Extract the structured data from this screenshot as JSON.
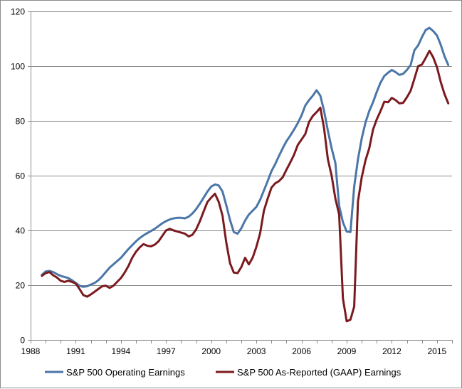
{
  "chart_data": {
    "type": "line",
    "xlim": [
      1988,
      2016
    ],
    "ylim": [
      0,
      120
    ],
    "yticks": [
      0,
      20,
      40,
      60,
      80,
      100,
      120
    ],
    "xticks": [
      1988,
      1991,
      1994,
      1997,
      2000,
      2003,
      2006,
      2009,
      2012,
      2015
    ],
    "xtick_labels": [
      "1988",
      "1991",
      "1994",
      "1997",
      "2000",
      "2003",
      "2006",
      "2009",
      "2012",
      "2015"
    ],
    "ytick_labels": [
      "0",
      "20",
      "40",
      "60",
      "80",
      "100",
      "120"
    ],
    "grid": "horizontal",
    "legend_position": "bottom",
    "series": [
      {
        "name": "S&P 500 Operating Earnings",
        "color": "#4a76a8",
        "points": [
          [
            1988.75,
            23.8
          ],
          [
            1989.0,
            25.0
          ],
          [
            1989.25,
            25.2
          ],
          [
            1989.5,
            24.8
          ],
          [
            1989.75,
            24.0
          ],
          [
            1990.0,
            23.4
          ],
          [
            1990.25,
            23.0
          ],
          [
            1990.5,
            22.6
          ],
          [
            1990.75,
            21.8
          ],
          [
            1991.0,
            20.8
          ],
          [
            1991.25,
            19.8
          ],
          [
            1991.5,
            19.4
          ],
          [
            1991.75,
            19.6
          ],
          [
            1992.0,
            20.2
          ],
          [
            1992.25,
            20.8
          ],
          [
            1992.5,
            21.8
          ],
          [
            1992.75,
            23.2
          ],
          [
            1993.0,
            24.8
          ],
          [
            1993.25,
            26.4
          ],
          [
            1993.5,
            27.6
          ],
          [
            1993.75,
            28.8
          ],
          [
            1994.0,
            30.0
          ],
          [
            1994.25,
            31.6
          ],
          [
            1994.5,
            33.2
          ],
          [
            1994.75,
            34.6
          ],
          [
            1995.0,
            36.0
          ],
          [
            1995.25,
            37.2
          ],
          [
            1995.5,
            38.2
          ],
          [
            1995.75,
            39.0
          ],
          [
            1996.0,
            39.8
          ],
          [
            1996.25,
            40.6
          ],
          [
            1996.5,
            41.6
          ],
          [
            1996.75,
            42.6
          ],
          [
            1997.0,
            43.4
          ],
          [
            1997.25,
            44.0
          ],
          [
            1997.5,
            44.4
          ],
          [
            1997.75,
            44.6
          ],
          [
            1998.0,
            44.6
          ],
          [
            1998.25,
            44.4
          ],
          [
            1998.5,
            45.0
          ],
          [
            1998.75,
            46.2
          ],
          [
            1999.0,
            47.8
          ],
          [
            1999.25,
            49.8
          ],
          [
            1999.5,
            52.0
          ],
          [
            1999.75,
            54.2
          ],
          [
            2000.0,
            56.0
          ],
          [
            2000.25,
            56.8
          ],
          [
            2000.5,
            56.4
          ],
          [
            2000.75,
            54.2
          ],
          [
            2001.0,
            49.2
          ],
          [
            2001.25,
            43.8
          ],
          [
            2001.5,
            39.4
          ],
          [
            2001.75,
            38.8
          ],
          [
            2002.0,
            40.8
          ],
          [
            2002.25,
            43.6
          ],
          [
            2002.5,
            45.8
          ],
          [
            2002.75,
            47.2
          ],
          [
            2003.0,
            48.6
          ],
          [
            2003.25,
            51.2
          ],
          [
            2003.5,
            54.6
          ],
          [
            2003.75,
            58.0
          ],
          [
            2004.0,
            61.6
          ],
          [
            2004.25,
            64.2
          ],
          [
            2004.5,
            67.2
          ],
          [
            2004.75,
            70.0
          ],
          [
            2005.0,
            72.6
          ],
          [
            2005.25,
            74.6
          ],
          [
            2005.5,
            76.8
          ],
          [
            2005.75,
            79.2
          ],
          [
            2006.0,
            82.0
          ],
          [
            2006.25,
            85.6
          ],
          [
            2006.5,
            87.6
          ],
          [
            2006.75,
            89.2
          ],
          [
            2007.0,
            91.2
          ],
          [
            2007.25,
            89.2
          ],
          [
            2007.5,
            83.6
          ],
          [
            2007.75,
            76.4
          ],
          [
            2008.0,
            70.0
          ],
          [
            2008.25,
            64.6
          ],
          [
            2008.5,
            49.0
          ],
          [
            2008.75,
            43.0
          ],
          [
            2009.0,
            39.6
          ],
          [
            2009.25,
            39.4
          ],
          [
            2009.5,
            56.0
          ],
          [
            2009.75,
            66.0
          ],
          [
            2010.0,
            73.6
          ],
          [
            2010.25,
            79.4
          ],
          [
            2010.5,
            83.6
          ],
          [
            2010.75,
            86.8
          ],
          [
            2011.0,
            90.6
          ],
          [
            2011.25,
            94.0
          ],
          [
            2011.5,
            96.4
          ],
          [
            2011.75,
            97.6
          ],
          [
            2012.0,
            98.6
          ],
          [
            2012.25,
            97.8
          ],
          [
            2012.5,
            96.8
          ],
          [
            2012.75,
            97.2
          ],
          [
            2013.0,
            98.6
          ],
          [
            2013.25,
            100.4
          ],
          [
            2013.5,
            105.8
          ],
          [
            2013.75,
            107.6
          ],
          [
            2014.0,
            110.6
          ],
          [
            2014.25,
            113.2
          ],
          [
            2014.5,
            114.0
          ],
          [
            2014.75,
            112.8
          ],
          [
            2015.0,
            111.2
          ],
          [
            2015.25,
            107.8
          ],
          [
            2015.5,
            103.6
          ],
          [
            2015.75,
            100.4
          ]
        ]
      },
      {
        "name": "S&P 500 As-Reported (GAAP) Earnings",
        "color": "#7b1a1e",
        "points": [
          [
            1988.75,
            23.4
          ],
          [
            1989.0,
            24.4
          ],
          [
            1989.25,
            24.8
          ],
          [
            1989.5,
            23.6
          ],
          [
            1989.75,
            22.8
          ],
          [
            1990.0,
            21.6
          ],
          [
            1990.25,
            21.2
          ],
          [
            1990.5,
            21.6
          ],
          [
            1990.75,
            21.2
          ],
          [
            1991.0,
            20.6
          ],
          [
            1991.25,
            18.6
          ],
          [
            1991.5,
            16.4
          ],
          [
            1991.75,
            15.8
          ],
          [
            1992.0,
            16.6
          ],
          [
            1992.25,
            17.6
          ],
          [
            1992.5,
            18.6
          ],
          [
            1992.75,
            19.6
          ],
          [
            1993.0,
            19.8
          ],
          [
            1993.25,
            19.0
          ],
          [
            1993.5,
            19.8
          ],
          [
            1993.75,
            21.2
          ],
          [
            1994.0,
            22.6
          ],
          [
            1994.25,
            24.6
          ],
          [
            1994.5,
            27.0
          ],
          [
            1994.75,
            30.0
          ],
          [
            1995.0,
            32.2
          ],
          [
            1995.25,
            33.8
          ],
          [
            1995.5,
            35.0
          ],
          [
            1995.75,
            34.4
          ],
          [
            1996.0,
            34.2
          ],
          [
            1996.25,
            34.8
          ],
          [
            1996.5,
            36.0
          ],
          [
            1996.75,
            38.0
          ],
          [
            1997.0,
            40.0
          ],
          [
            1997.25,
            40.6
          ],
          [
            1997.5,
            40.0
          ],
          [
            1997.75,
            39.6
          ],
          [
            1998.0,
            39.2
          ],
          [
            1998.25,
            38.8
          ],
          [
            1998.5,
            37.8
          ],
          [
            1998.75,
            38.4
          ],
          [
            1999.0,
            40.4
          ],
          [
            1999.25,
            43.4
          ],
          [
            1999.5,
            47.0
          ],
          [
            1999.75,
            50.4
          ],
          [
            2000.0,
            52.0
          ],
          [
            2000.25,
            53.4
          ],
          [
            2000.5,
            50.4
          ],
          [
            2000.75,
            45.4
          ],
          [
            2001.0,
            35.6
          ],
          [
            2001.25,
            28.0
          ],
          [
            2001.5,
            24.6
          ],
          [
            2001.75,
            24.4
          ],
          [
            2002.0,
            26.6
          ],
          [
            2002.25,
            30.0
          ],
          [
            2002.5,
            27.6
          ],
          [
            2002.75,
            30.0
          ],
          [
            2003.0,
            34.0
          ],
          [
            2003.25,
            39.0
          ],
          [
            2003.5,
            47.2
          ],
          [
            2003.75,
            51.6
          ],
          [
            2004.0,
            55.6
          ],
          [
            2004.25,
            57.2
          ],
          [
            2004.5,
            58.0
          ],
          [
            2004.75,
            59.4
          ],
          [
            2005.0,
            62.2
          ],
          [
            2005.25,
            64.8
          ],
          [
            2005.5,
            67.6
          ],
          [
            2005.75,
            71.2
          ],
          [
            2006.0,
            73.2
          ],
          [
            2006.25,
            75.2
          ],
          [
            2006.5,
            79.6
          ],
          [
            2006.75,
            81.8
          ],
          [
            2007.0,
            83.2
          ],
          [
            2007.25,
            84.8
          ],
          [
            2007.5,
            77.2
          ],
          [
            2007.75,
            66.0
          ],
          [
            2008.0,
            60.0
          ],
          [
            2008.25,
            51.6
          ],
          [
            2008.5,
            45.8
          ],
          [
            2008.75,
            15.2
          ],
          [
            2009.0,
            6.8
          ],
          [
            2009.25,
            7.4
          ],
          [
            2009.5,
            12.2
          ],
          [
            2009.75,
            50.6
          ],
          [
            2010.0,
            59.4
          ],
          [
            2010.25,
            65.6
          ],
          [
            2010.5,
            70.0
          ],
          [
            2010.75,
            76.8
          ],
          [
            2011.0,
            80.6
          ],
          [
            2011.25,
            83.6
          ],
          [
            2011.5,
            87.0
          ],
          [
            2011.75,
            86.8
          ],
          [
            2012.0,
            88.4
          ],
          [
            2012.25,
            87.6
          ],
          [
            2012.5,
            86.4
          ],
          [
            2012.75,
            86.6
          ],
          [
            2013.0,
            88.6
          ],
          [
            2013.25,
            91.0
          ],
          [
            2013.5,
            95.4
          ],
          [
            2013.75,
            100.0
          ],
          [
            2014.0,
            100.6
          ],
          [
            2014.25,
            103.0
          ],
          [
            2014.5,
            105.6
          ],
          [
            2014.75,
            103.2
          ],
          [
            2015.0,
            99.6
          ],
          [
            2015.25,
            94.2
          ],
          [
            2015.5,
            89.8
          ],
          [
            2015.75,
            86.4
          ]
        ]
      }
    ]
  }
}
